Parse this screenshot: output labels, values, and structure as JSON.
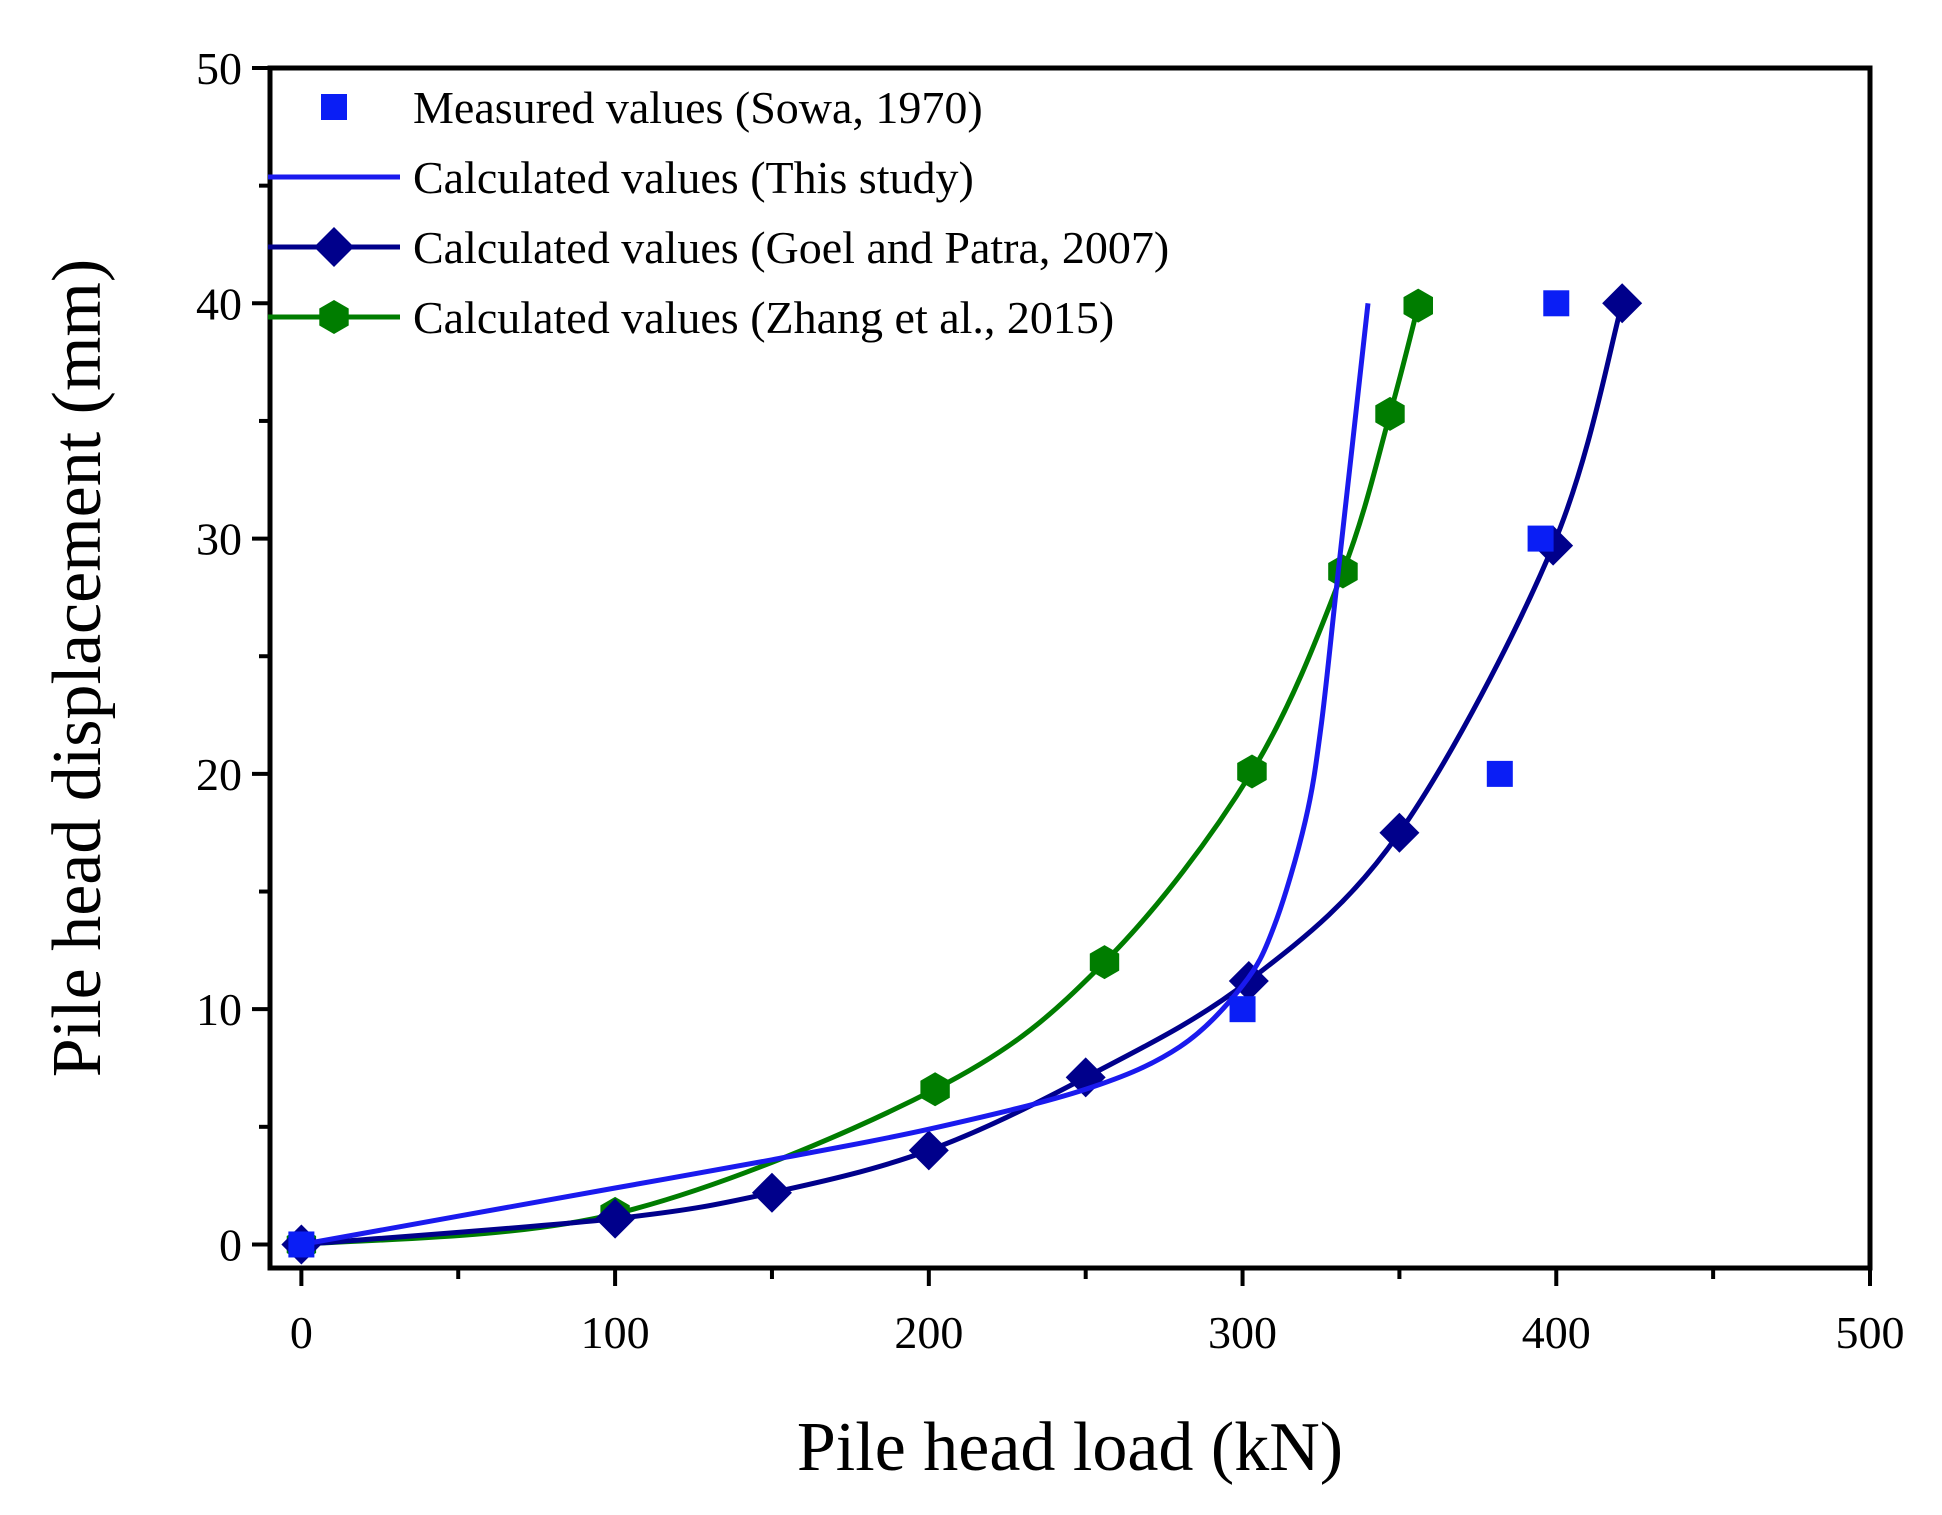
{
  "chart_data": {
    "type": "line",
    "xlabel": "Pile head load (kN)",
    "ylabel": "Pile head displacement (mm)",
    "xlim": [
      -10,
      500
    ],
    "ylim": [
      -1,
      50
    ],
    "x_ticks": [
      0,
      100,
      200,
      300,
      400,
      500
    ],
    "y_ticks": [
      0,
      10,
      20,
      30,
      40,
      50
    ],
    "x_tick_labels": [
      "0",
      "100",
      "200",
      "300",
      "400",
      "500"
    ],
    "y_tick_labels": [
      "0",
      "10",
      "20",
      "30",
      "40",
      "50"
    ],
    "legend_position": "top-left",
    "series": [
      {
        "name": "Measured values (Sowa, 1970)",
        "style": "markers",
        "marker": "square",
        "color": "#0a1ef5",
        "x": [
          0,
          300,
          382,
          395,
          400
        ],
        "y": [
          0,
          10,
          20,
          30,
          40
        ]
      },
      {
        "name": "Calculated values (This study)",
        "style": "line",
        "marker": "none",
        "color": "#1a1aee",
        "x": [
          0,
          50,
          100,
          150,
          200,
          250,
          280,
          300,
          310,
          320,
          325,
          330,
          335,
          340
        ],
        "y": [
          0,
          1.2,
          2.4,
          3.6,
          4.9,
          6.6,
          8.4,
          11,
          13.5,
          18,
          22,
          28,
          34,
          40
        ]
      },
      {
        "name": "Calculated values (Goel and Patra, 2007)",
        "style": "line+markers",
        "marker": "diamond",
        "color": "#00008b",
        "x": [
          0,
          100,
          150,
          200,
          250,
          302,
          350,
          399,
          421
        ],
        "y": [
          0,
          1.1,
          2.2,
          4.0,
          7.1,
          11.2,
          17.5,
          29.7,
          40
        ]
      },
      {
        "name": "Calculated values (Zhang et al., 2015)",
        "style": "line+markers",
        "marker": "hexagon",
        "color": "#007d00",
        "x": [
          0,
          100,
          202,
          256,
          303,
          332,
          347,
          356
        ],
        "y": [
          0,
          1.3,
          6.6,
          12,
          20.1,
          28.6,
          35.3,
          39.9
        ]
      }
    ]
  }
}
